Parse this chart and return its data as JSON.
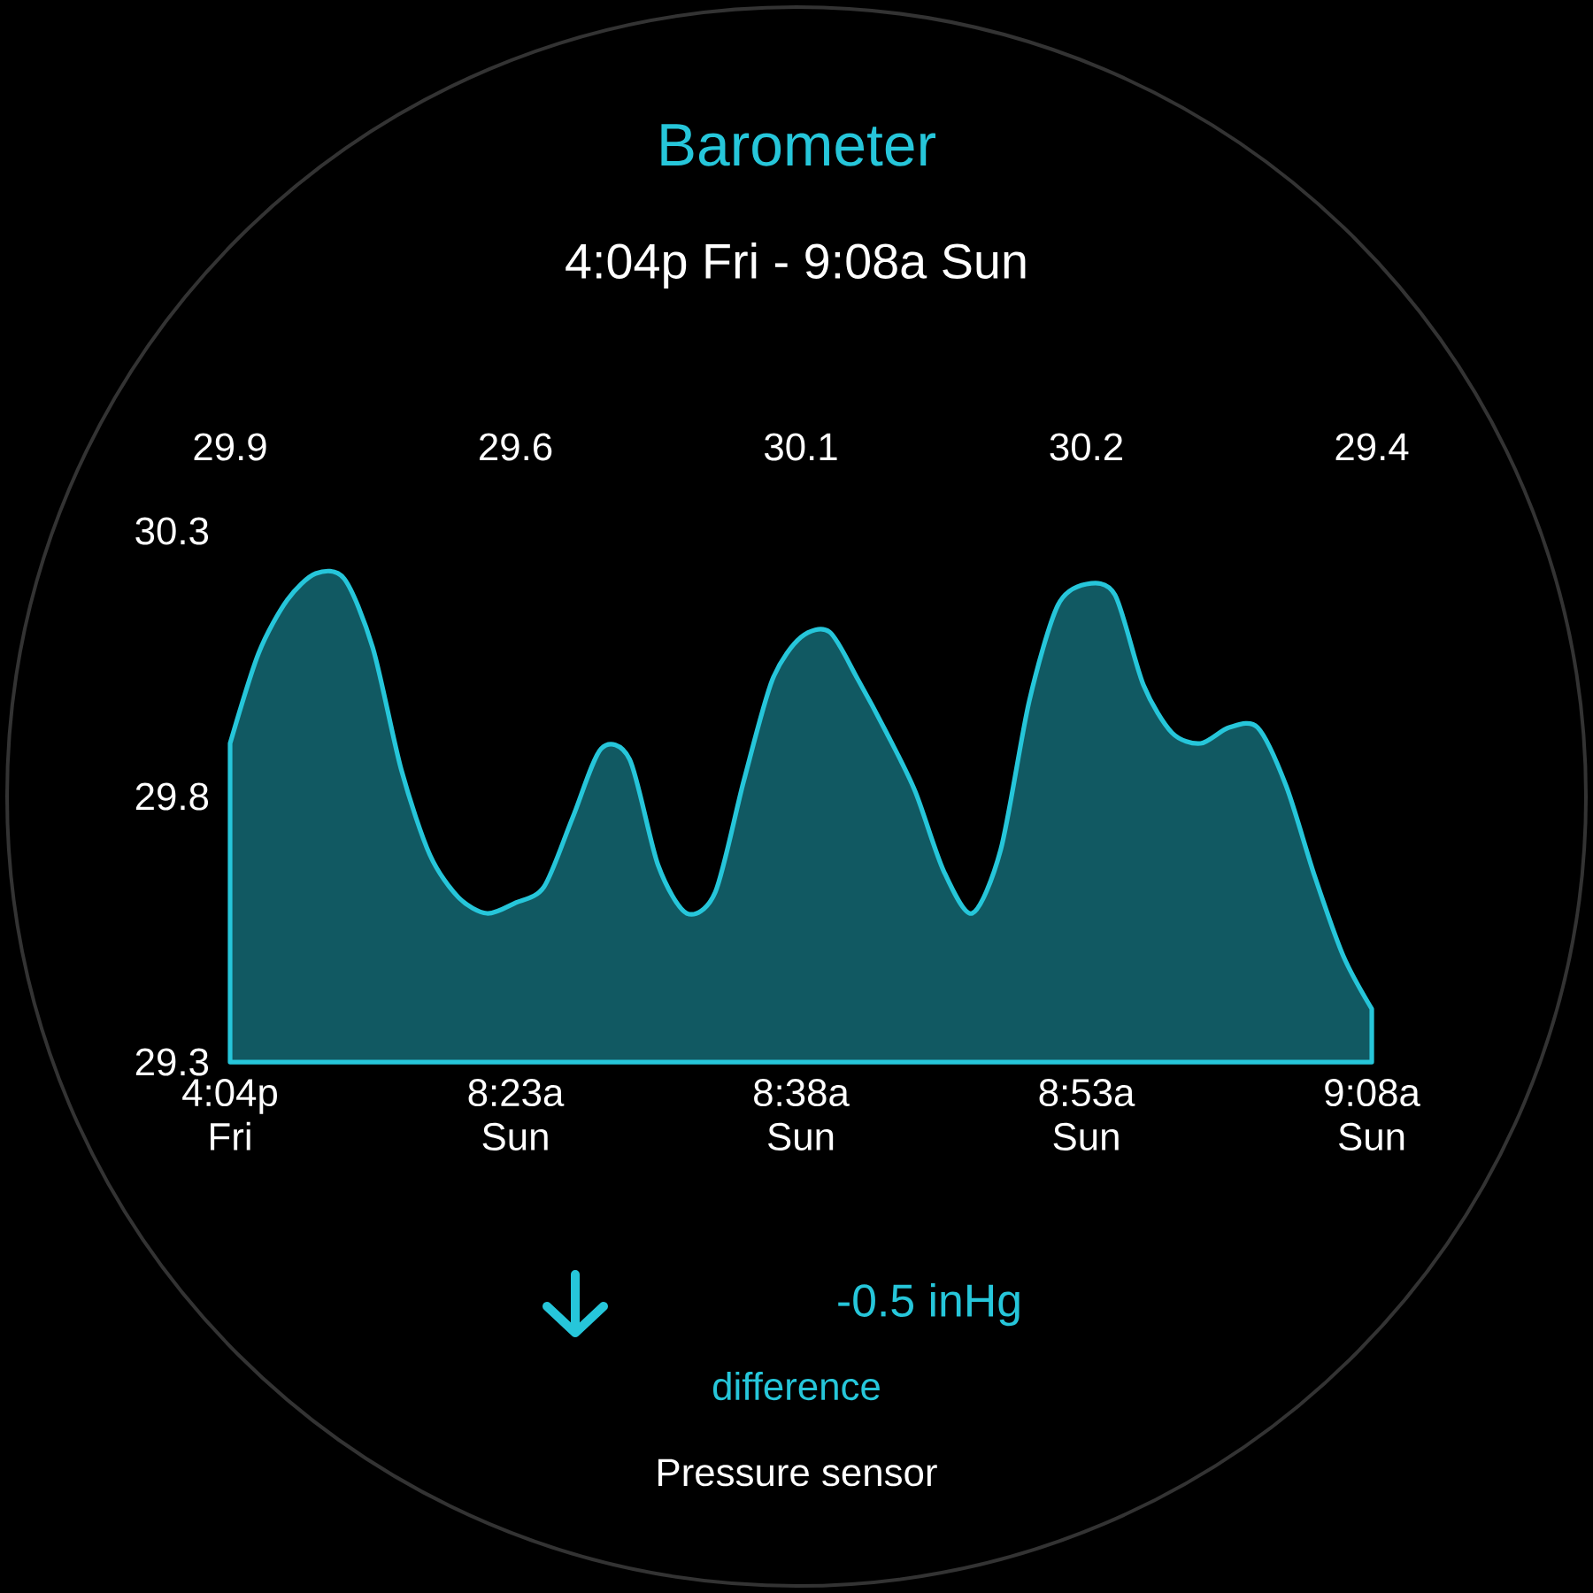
{
  "chart_data": {
    "type": "area",
    "title": "Barometer",
    "subtitle": "4:04p Fri - 9:08a Sun",
    "categories": [
      "4:04p Fri",
      null,
      null,
      null,
      null,
      null,
      null,
      null,
      null,
      null,
      "8:23a Sun",
      null,
      null,
      null,
      null,
      null,
      null,
      null,
      null,
      null,
      "8:38a Sun",
      null,
      null,
      null,
      null,
      null,
      null,
      null,
      null,
      null,
      "8:53a Sun",
      null,
      null,
      null,
      null,
      null,
      null,
      null,
      null,
      null,
      "9:08a Sun"
    ],
    "values": [
      29.9,
      30.07,
      30.17,
      30.22,
      30.21,
      30.08,
      29.85,
      29.69,
      29.61,
      29.58,
      29.6,
      29.63,
      29.76,
      29.89,
      29.87,
      29.67,
      29.58,
      29.62,
      29.83,
      30.02,
      30.1,
      30.11,
      30.02,
      29.92,
      29.81,
      29.66,
      29.58,
      29.7,
      29.98,
      30.16,
      30.2,
      30.18,
      30.01,
      29.92,
      29.9,
      29.93,
      29.93,
      29.82,
      29.65,
      29.5,
      29.4
    ],
    "value_labels": [
      "29.9",
      null,
      null,
      null,
      null,
      null,
      null,
      null,
      null,
      null,
      "29.6",
      null,
      null,
      null,
      null,
      null,
      null,
      null,
      null,
      null,
      "30.1",
      null,
      null,
      null,
      null,
      null,
      null,
      null,
      null,
      null,
      "30.2",
      null,
      null,
      null,
      null,
      null,
      null,
      null,
      null,
      null,
      "29.4"
    ],
    "color": "#26c6da",
    "ylim": [
      29.3,
      30.3
    ],
    "yticks": [
      29.3,
      29.8,
      30.3
    ],
    "annotations": [
      "-0.5 inHg",
      "difference",
      "Pressure sensor"
    ]
  }
}
